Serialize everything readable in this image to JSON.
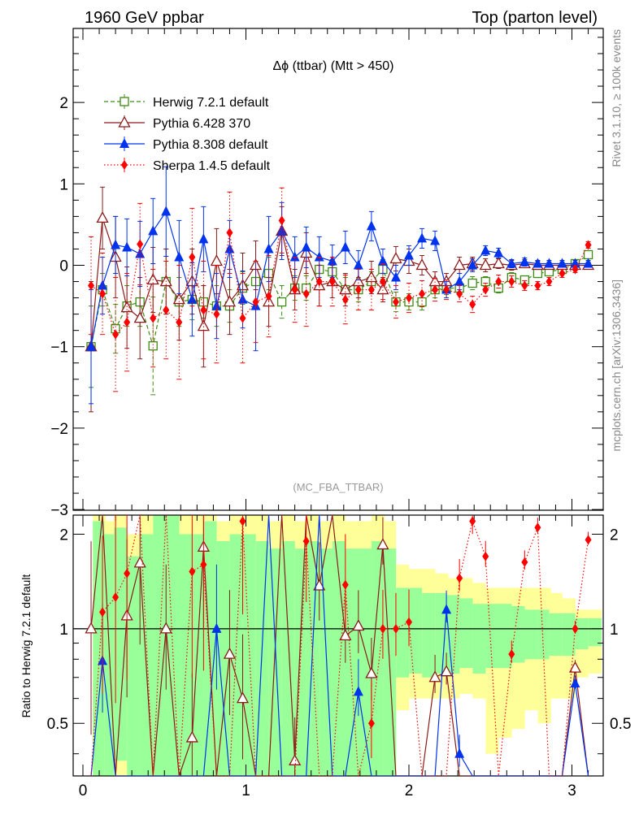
{
  "header": {
    "left": "1960 GeV ppbar",
    "right": "Top (parton level)"
  },
  "side_labels": {
    "rivet": "Rivet 3.1.10, ≥ 100k events",
    "mcplots": "mcplots.cern.ch [arXiv:1306.3436]"
  },
  "chart_data": {
    "type": "scatter",
    "title": "Δϕ (ttbar) (Mtt > 450)",
    "watermark": "(MC_FBA_TTBAR)",
    "xlabel": "",
    "ylabel_main": "",
    "ylabel_ratio": "Ratio to Herwig 7.2.1 default",
    "xlim": [
      -0.03,
      3.17
    ],
    "ylim_main": [
      -3,
      2.9
    ],
    "ylim_ratio": [
      0.34,
      2.3
    ],
    "x_ticks": [
      "0",
      "1",
      "2",
      "3"
    ],
    "y_ticks_main": [
      "2",
      "1",
      "0",
      "−1",
      "−2",
      "−3"
    ],
    "y_ticks_ratio": [
      "2",
      "1",
      "0.5"
    ],
    "legend_position": "top-left",
    "x": [
      0.05,
      0.12,
      0.2,
      0.27,
      0.35,
      0.43,
      0.51,
      0.59,
      0.67,
      0.74,
      0.82,
      0.9,
      0.98,
      1.06,
      1.14,
      1.22,
      1.3,
      1.37,
      1.45,
      1.53,
      1.61,
      1.69,
      1.77,
      1.84,
      1.92,
      2.0,
      2.08,
      2.16,
      2.23,
      2.31,
      2.39,
      2.47,
      2.55,
      2.63,
      2.71,
      2.79,
      2.86,
      2.94,
      3.02,
      3.1
    ],
    "series": [
      {
        "name": "Herwig 7.2.1 default",
        "color": "#3d8c12",
        "marker": "open-square",
        "line": "dashed",
        "values": [
          -1.0,
          -0.3,
          -0.78,
          -0.5,
          -0.45,
          -0.99,
          -0.2,
          -0.45,
          -0.42,
          -0.45,
          -0.5,
          -0.5,
          -0.28,
          -0.2,
          -0.1,
          -0.45,
          -0.28,
          -0.28,
          -0.05,
          -0.08,
          -0.3,
          -0.3,
          -0.2,
          -0.05,
          -0.45,
          -0.45,
          -0.45,
          -0.3,
          -0.28,
          -0.28,
          -0.22,
          -0.2,
          -0.28,
          -0.15,
          -0.18,
          -0.1,
          -0.08,
          -0.05,
          0.02,
          0.13
        ],
        "errors": [
          0.5,
          0.2,
          0.3,
          0.25,
          0.3,
          0.6,
          0.4,
          0.3,
          0.25,
          0.2,
          0.25,
          0.2,
          0.2,
          0.25,
          0.2,
          0.2,
          0.15,
          0.15,
          0.15,
          0.15,
          0.15,
          0.15,
          0.12,
          0.12,
          0.12,
          0.1,
          0.1,
          0.1,
          0.08,
          0.08,
          0.08,
          0.06,
          0.06,
          0.06,
          0.05,
          0.05,
          0.05,
          0.04,
          0.04,
          0.04
        ]
      },
      {
        "name": "Pythia 6.428 370",
        "color": "#8b1a1a",
        "marker": "open-triangle",
        "line": "solid",
        "values": [
          -1.0,
          0.58,
          0.1,
          -0.52,
          -0.65,
          -0.18,
          -0.2,
          -0.42,
          -0.2,
          -0.75,
          0.05,
          -0.45,
          -0.25,
          0.0,
          -0.45,
          0.42,
          -0.3,
          0.15,
          -0.25,
          -0.2,
          -0.3,
          -0.2,
          -0.15,
          -0.3,
          0.08,
          0.05,
          0.0,
          -0.2,
          -0.2,
          0.0,
          0.02,
          0.0,
          0.02,
          0.0,
          0.02,
          0.0,
          0.0,
          0.0,
          0.0,
          0.0
        ],
        "errors": [
          0.8,
          0.38,
          0.5,
          0.5,
          0.5,
          0.4,
          0.4,
          0.5,
          0.4,
          0.5,
          0.4,
          0.4,
          0.4,
          0.3,
          0.3,
          0.3,
          0.25,
          0.25,
          0.25,
          0.2,
          0.2,
          0.2,
          0.2,
          0.15,
          0.15,
          0.15,
          0.12,
          0.12,
          0.1,
          0.1,
          0.08,
          0.08,
          0.06,
          0.06,
          0.05,
          0.05,
          0.04,
          0.04,
          0.04,
          0.04
        ]
      },
      {
        "name": "Pythia 8.308 default",
        "color": "#0033ee",
        "marker": "filled-triangle",
        "line": "solid",
        "values": [
          -1.0,
          -0.25,
          0.25,
          0.22,
          0.14,
          0.42,
          0.66,
          0.1,
          -0.42,
          0.32,
          -0.5,
          0.2,
          -0.42,
          -0.5,
          0.2,
          0.42,
          0.1,
          0.22,
          0.1,
          0.05,
          0.22,
          0.0,
          0.48,
          0.05,
          -0.15,
          0.12,
          0.33,
          0.3,
          -0.3,
          -0.2,
          0.0,
          0.18,
          0.15,
          0.02,
          0.04,
          0.02,
          0.02,
          0.02,
          0.02,
          0.02
        ],
        "errors": [
          0.7,
          0.35,
          0.35,
          0.35,
          0.4,
          0.4,
          0.55,
          0.45,
          0.45,
          0.4,
          0.4,
          0.35,
          0.35,
          0.55,
          0.4,
          0.35,
          0.25,
          0.25,
          0.25,
          0.2,
          0.2,
          0.18,
          0.18,
          0.15,
          0.15,
          0.12,
          0.12,
          0.12,
          0.1,
          0.1,
          0.08,
          0.06,
          0.06,
          0.05,
          0.05,
          0.04,
          0.04,
          0.04,
          0.04,
          0.04
        ]
      },
      {
        "name": "Sherpa 1.4.5 default",
        "color": "#ff0000",
        "marker": "filled-diamond",
        "line": "dotted",
        "values": [
          -0.25,
          -0.35,
          -0.85,
          -0.7,
          0.26,
          -0.65,
          -0.55,
          -0.7,
          0.1,
          -0.55,
          -0.6,
          0.4,
          -0.65,
          -0.45,
          -0.38,
          0.55,
          -0.3,
          -0.35,
          -0.2,
          -0.2,
          -0.42,
          -0.3,
          -0.3,
          -0.2,
          -0.45,
          -0.4,
          -0.35,
          -0.3,
          -0.3,
          -0.35,
          -0.48,
          -0.3,
          -0.2,
          -0.2,
          -0.25,
          -0.25,
          -0.2,
          -0.1,
          -0.05,
          0.25
        ],
        "errors": [
          0.6,
          0.5,
          0.7,
          0.6,
          0.5,
          0.6,
          0.6,
          0.7,
          0.6,
          0.6,
          0.6,
          0.5,
          0.55,
          0.5,
          0.5,
          0.4,
          0.4,
          0.4,
          0.3,
          0.3,
          0.3,
          0.25,
          0.25,
          0.22,
          0.2,
          0.18,
          0.16,
          0.14,
          0.12,
          0.1,
          0.1,
          0.08,
          0.08,
          0.07,
          0.06,
          0.05,
          0.05,
          0.05,
          0.04,
          0.04
        ]
      }
    ],
    "ratio_band": {
      "x": [
        0.1,
        0.17,
        0.23,
        0.31,
        0.39,
        0.47,
        0.55,
        0.63,
        0.71,
        0.78,
        0.86,
        0.94,
        1.02,
        1.1,
        1.18,
        1.26,
        1.34,
        1.41,
        1.49,
        1.57,
        1.65,
        1.73,
        1.81,
        1.88,
        1.96,
        2.04,
        2.12,
        2.2,
        2.27,
        2.35,
        2.43,
        2.51,
        2.59,
        2.67,
        2.75,
        2.83,
        2.9,
        2.98,
        3.06,
        3.14
      ],
      "yellow_hi": [
        2.3,
        2.2,
        2.3,
        2.0,
        2.3,
        2.3,
        2.3,
        2.3,
        2.3,
        2.3,
        2.2,
        2.3,
        2.3,
        2.3,
        2.2,
        2.3,
        2.2,
        2.3,
        2.2,
        2.3,
        2.2,
        2.2,
        2.3,
        2.2,
        1.6,
        1.55,
        1.55,
        1.5,
        1.45,
        1.45,
        1.4,
        1.35,
        1.35,
        1.35,
        1.35,
        1.35,
        1.3,
        1.25,
        1.15,
        1.15
      ],
      "yellow_lo": [
        0.34,
        0.34,
        0.34,
        0.34,
        0.34,
        0.34,
        0.34,
        0.34,
        0.34,
        0.34,
        0.34,
        0.34,
        0.34,
        0.34,
        0.34,
        0.34,
        0.34,
        0.34,
        0.34,
        0.34,
        0.34,
        0.34,
        0.34,
        0.34,
        0.55,
        0.6,
        0.6,
        0.6,
        0.6,
        0.62,
        0.6,
        0.4,
        0.45,
        0.48,
        0.55,
        0.5,
        0.6,
        0.6,
        0.7,
        0.72
      ],
      "green_hi": [
        2.2,
        2.0,
        2.1,
        1.7,
        2.0,
        2.3,
        2.3,
        2.0,
        2.0,
        2.2,
        1.9,
        2.0,
        2.0,
        1.9,
        1.8,
        1.9,
        1.8,
        1.9,
        1.8,
        1.9,
        1.8,
        1.8,
        1.9,
        1.8,
        1.35,
        1.35,
        1.3,
        1.3,
        1.28,
        1.25,
        1.2,
        1.2,
        1.2,
        1.18,
        1.15,
        1.15,
        1.12,
        1.12,
        1.08,
        1.08
      ],
      "green_lo": [
        0.34,
        0.34,
        0.38,
        0.34,
        0.34,
        0.34,
        0.34,
        0.34,
        0.34,
        0.34,
        0.34,
        0.34,
        0.34,
        0.34,
        0.34,
        0.34,
        0.34,
        0.34,
        0.34,
        0.34,
        0.34,
        0.34,
        0.34,
        0.34,
        0.7,
        0.72,
        0.7,
        0.72,
        0.72,
        0.75,
        0.72,
        0.75,
        0.75,
        0.78,
        0.8,
        0.8,
        0.82,
        0.82,
        0.86,
        0.88
      ]
    },
    "ratios": [
      {
        "name": "Pythia 6.428 370",
        "values": [
          1.0,
          2.4,
          0.34,
          1.1,
          1.62,
          0.34,
          1.0,
          0.34,
          0.45,
          1.82,
          0.34,
          0.83,
          0.6,
          0.34,
          0.34,
          2.4,
          0.38,
          2.3,
          1.37,
          2.3,
          0.95,
          1.02,
          0.72,
          1.85,
          0.34,
          0.34,
          0.34,
          0.7,
          0.73,
          0.34,
          0.34,
          0.34,
          0.34,
          0.34,
          0.34,
          0.34,
          0.34,
          0.34,
          0.75,
          0.34
        ]
      },
      {
        "name": "Pythia 8.308 default",
        "values": [
          0.34,
          0.79,
          0.34,
          0.34,
          0.34,
          0.34,
          0.34,
          0.34,
          0.34,
          0.34,
          1.0,
          0.34,
          0.34,
          0.34,
          2.4,
          0.34,
          0.34,
          0.34,
          2.4,
          0.34,
          0.34,
          0.63,
          0.34,
          0.34,
          0.34,
          0.34,
          0.34,
          0.34,
          1.15,
          0.4,
          0.34,
          0.34,
          0.34,
          0.34,
          0.34,
          0.34,
          0.34,
          0.34,
          0.67,
          0.34
        ]
      },
      {
        "name": "Sherpa 1.4.5 default",
        "values": [
          0.34,
          1.13,
          1.26,
          1.5,
          2.4,
          0.34,
          2.4,
          0.34,
          1.52,
          1.6,
          0.34,
          0.34,
          2.2,
          0.34,
          0.34,
          0.34,
          0.34,
          1.9,
          0.34,
          0.34,
          1.38,
          0.34,
          0.5,
          1.0,
          1.0,
          1.05,
          0.34,
          0.34,
          0.34,
          1.45,
          2.2,
          1.7,
          0.34,
          0.83,
          1.63,
          2.1,
          0.34,
          0.34,
          1.0,
          1.92
        ]
      }
    ]
  }
}
